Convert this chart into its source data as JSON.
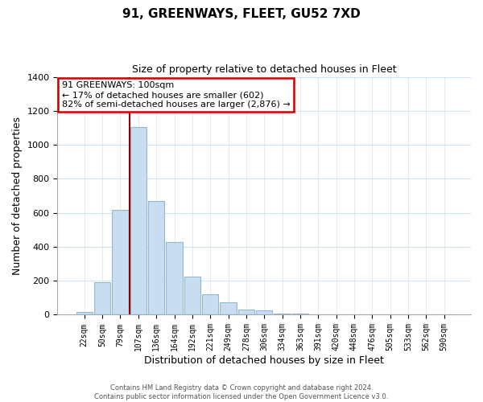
{
  "title": "91, GREENWAYS, FLEET, GU52 7XD",
  "subtitle": "Size of property relative to detached houses in Fleet",
  "xlabel": "Distribution of detached houses by size in Fleet",
  "ylabel": "Number of detached properties",
  "bar_color": "#c8ddf0",
  "bar_edge_color": "#92b8d8",
  "annotation_box_color": "#ffffff",
  "annotation_border_color": "#cc0000",
  "marker_line_color": "#990000",
  "categories": [
    "22sqm",
    "50sqm",
    "79sqm",
    "107sqm",
    "136sqm",
    "164sqm",
    "192sqm",
    "221sqm",
    "249sqm",
    "278sqm",
    "306sqm",
    "334sqm",
    "363sqm",
    "391sqm",
    "420sqm",
    "448sqm",
    "476sqm",
    "505sqm",
    "533sqm",
    "562sqm",
    "590sqm"
  ],
  "values": [
    15,
    190,
    615,
    1105,
    670,
    430,
    225,
    120,
    75,
    30,
    25,
    5,
    5,
    2,
    2,
    0,
    0,
    0,
    0,
    0,
    0
  ],
  "annotation_title": "91 GREENWAYS: 100sqm",
  "annotation_line1": "← 17% of detached houses are smaller (602)",
  "annotation_line2": "82% of semi-detached houses are larger (2,876) →",
  "ylim": [
    0,
    1400
  ],
  "yticks": [
    0,
    200,
    400,
    600,
    800,
    1000,
    1200,
    1400
  ],
  "footer_line1": "Contains HM Land Registry data © Crown copyright and database right 2024.",
  "footer_line2": "Contains public sector information licensed under the Open Government Licence v3.0.",
  "background_color": "#ffffff",
  "grid_color": "#d4e4f4"
}
